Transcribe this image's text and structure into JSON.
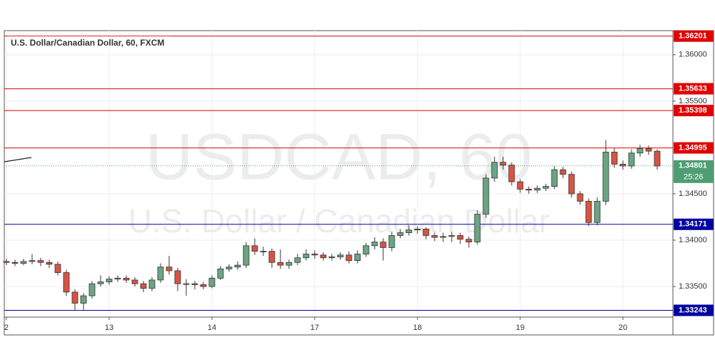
{
  "chart_data": {
    "type": "candlestick",
    "title": "U.S. Dollar/Canadian Dollar, 60, FXCM",
    "watermark": "USDCAD, 60",
    "watermark_subtitle": "U.S. Dollar / Canadian Dollar",
    "up_color": "#6ba583",
    "down_color": "#d75442",
    "grid": true,
    "xlim": [
      -0.5,
      155.67
    ],
    "ylim": [
      1.3317,
      1.3626
    ],
    "xticks": [
      {
        "value": 0,
        "label": "2"
      },
      {
        "value": 24,
        "label": "13"
      },
      {
        "value": 48,
        "label": "14"
      },
      {
        "value": 72,
        "label": "17"
      },
      {
        "value": 96,
        "label": "18"
      },
      {
        "value": 120,
        "label": "19"
      },
      {
        "value": 144,
        "label": "20"
      }
    ],
    "yticks": [
      {
        "value": 1.335,
        "label": "1.33500"
      },
      {
        "value": 1.34,
        "label": "1.34000"
      },
      {
        "value": 1.345,
        "label": "1.34500"
      },
      {
        "value": 1.355,
        "label": "1.35500"
      },
      {
        "value": 1.36,
        "label": "1.36000"
      }
    ],
    "x": [
      0,
      2,
      4,
      6,
      8,
      10,
      12,
      14,
      16,
      18,
      20,
      22,
      24,
      26,
      28,
      30,
      32,
      34,
      36,
      38,
      40,
      42,
      44,
      46,
      48,
      50,
      52,
      54,
      56,
      58,
      60,
      62,
      64,
      66,
      68,
      70,
      72,
      74,
      76,
      78,
      80,
      82,
      84,
      86,
      88,
      90,
      92,
      94,
      96,
      98,
      100,
      102,
      104,
      106,
      108,
      110,
      112,
      114,
      116,
      118,
      120,
      122,
      124,
      126,
      128,
      130,
      132,
      134,
      136,
      138,
      140,
      142,
      144,
      146,
      148,
      150,
      152
    ],
    "open": [
      1.3377,
      1.3376,
      1.3375,
      1.3377,
      1.3378,
      1.3376,
      1.3374,
      1.3365,
      1.3344,
      1.3332,
      1.334,
      1.3353,
      1.3355,
      1.3358,
      1.3359,
      1.3357,
      1.3353,
      1.3348,
      1.3357,
      1.3371,
      1.3367,
      1.3353,
      1.3353,
      1.3352,
      1.335,
      1.3359,
      1.3369,
      1.3371,
      1.3373,
      1.3394,
      1.3388,
      1.3388,
      1.3376,
      1.3373,
      1.3376,
      1.3381,
      1.3385,
      1.3384,
      1.3381,
      1.3382,
      1.3384,
      1.3378,
      1.3385,
      1.3394,
      1.3398,
      1.3392,
      1.3405,
      1.3408,
      1.3411,
      1.3412,
      1.3405,
      1.3403,
      1.3404,
      1.3405,
      1.3401,
      1.3398,
      1.3428,
      1.3467,
      1.3484,
      1.3481,
      1.3463,
      1.3455,
      1.3454,
      1.3456,
      1.3458,
      1.3476,
      1.3471,
      1.345,
      1.3442,
      1.3419,
      1.3442,
      1.3495,
      1.3482,
      1.348,
      1.3494,
      1.3499,
      1.3496
    ],
    "high": [
      1.338,
      1.3379,
      1.338,
      1.3385,
      1.3381,
      1.3379,
      1.3377,
      1.3368,
      1.3347,
      1.3343,
      1.3356,
      1.3362,
      1.3361,
      1.3362,
      1.3362,
      1.336,
      1.3356,
      1.336,
      1.3375,
      1.3383,
      1.337,
      1.3358,
      1.3356,
      1.3355,
      1.3362,
      1.3372,
      1.3374,
      1.3377,
      1.3398,
      1.3402,
      1.3393,
      1.3391,
      1.339,
      1.3379,
      1.3385,
      1.339,
      1.3389,
      1.3387,
      1.3385,
      1.3387,
      1.3388,
      1.3389,
      1.3397,
      1.3403,
      1.3402,
      1.3409,
      1.3412,
      1.3416,
      1.3415,
      1.3414,
      1.3408,
      1.3408,
      1.3409,
      1.3408,
      1.3404,
      1.3432,
      1.3471,
      1.349,
      1.349,
      1.3484,
      1.3466,
      1.3458,
      1.3459,
      1.3461,
      1.348,
      1.3479,
      1.3474,
      1.3453,
      1.3445,
      1.3446,
      1.3508,
      1.3499,
      1.3486,
      1.3498,
      1.3503,
      1.3502,
      1.3498
    ],
    "low": [
      1.3373,
      1.3372,
      1.3373,
      1.3374,
      1.3372,
      1.337,
      1.3362,
      1.334,
      1.3324,
      1.3325,
      1.3337,
      1.335,
      1.3352,
      1.3355,
      1.3354,
      1.335,
      1.3344,
      1.3345,
      1.3354,
      1.3363,
      1.3345,
      1.334,
      1.3347,
      1.3347,
      1.3348,
      1.3357,
      1.3366,
      1.3368,
      1.337,
      1.3384,
      1.3383,
      1.337,
      1.3369,
      1.3369,
      1.3373,
      1.3378,
      1.338,
      1.3378,
      1.3378,
      1.3379,
      1.3375,
      1.3375,
      1.3382,
      1.339,
      1.3378,
      1.3388,
      1.3402,
      1.3405,
      1.3407,
      1.3401,
      1.3399,
      1.3398,
      1.3398,
      1.3396,
      1.3392,
      1.3395,
      1.3424,
      1.3463,
      1.3476,
      1.3459,
      1.3451,
      1.345,
      1.3451,
      1.3453,
      1.3455,
      1.3467,
      1.3446,
      1.3438,
      1.3415,
      1.3416,
      1.3438,
      1.3478,
      1.3476,
      1.3477,
      1.349,
      1.3492,
      1.3476
    ],
    "close": [
      1.3376,
      1.3375,
      1.3377,
      1.3378,
      1.3376,
      1.3374,
      1.3365,
      1.3344,
      1.3332,
      1.334,
      1.3353,
      1.3355,
      1.3358,
      1.3359,
      1.3357,
      1.3353,
      1.3348,
      1.3357,
      1.3371,
      1.3367,
      1.3353,
      1.3353,
      1.3352,
      1.335,
      1.3359,
      1.3369,
      1.3371,
      1.3373,
      1.3394,
      1.3388,
      1.3388,
      1.3376,
      1.3373,
      1.3376,
      1.3381,
      1.3385,
      1.3384,
      1.3381,
      1.3382,
      1.3384,
      1.3378,
      1.3385,
      1.3394,
      1.3398,
      1.3392,
      1.3405,
      1.3408,
      1.3411,
      1.3412,
      1.3405,
      1.3403,
      1.3404,
      1.3405,
      1.3401,
      1.3398,
      1.3428,
      1.3467,
      1.3484,
      1.3481,
      1.3463,
      1.3455,
      1.3454,
      1.3456,
      1.3458,
      1.3476,
      1.3471,
      1.345,
      1.3442,
      1.3419,
      1.3442,
      1.3495,
      1.3482,
      1.348,
      1.3494,
      1.3499,
      1.3496,
      1.348
    ],
    "levels": [
      {
        "value": 1.36201,
        "label": "1.36201",
        "color": "#e00000"
      },
      {
        "value": 1.35633,
        "label": "1.35633",
        "color": "#e00000"
      },
      {
        "value": 1.35398,
        "label": "1.35398",
        "color": "#e00000"
      },
      {
        "value": 1.34995,
        "label": "1.34995",
        "color": "#e00000"
      },
      {
        "value": 1.34171,
        "label": "1.34171",
        "color": "#0000a0"
      },
      {
        "value": 1.33243,
        "label": "1.33243",
        "color": "#0000a0"
      }
    ],
    "current_price": {
      "value": 1.34801,
      "label": "1.34801",
      "countdown": "25:26",
      "color": "#4f9d72"
    }
  }
}
